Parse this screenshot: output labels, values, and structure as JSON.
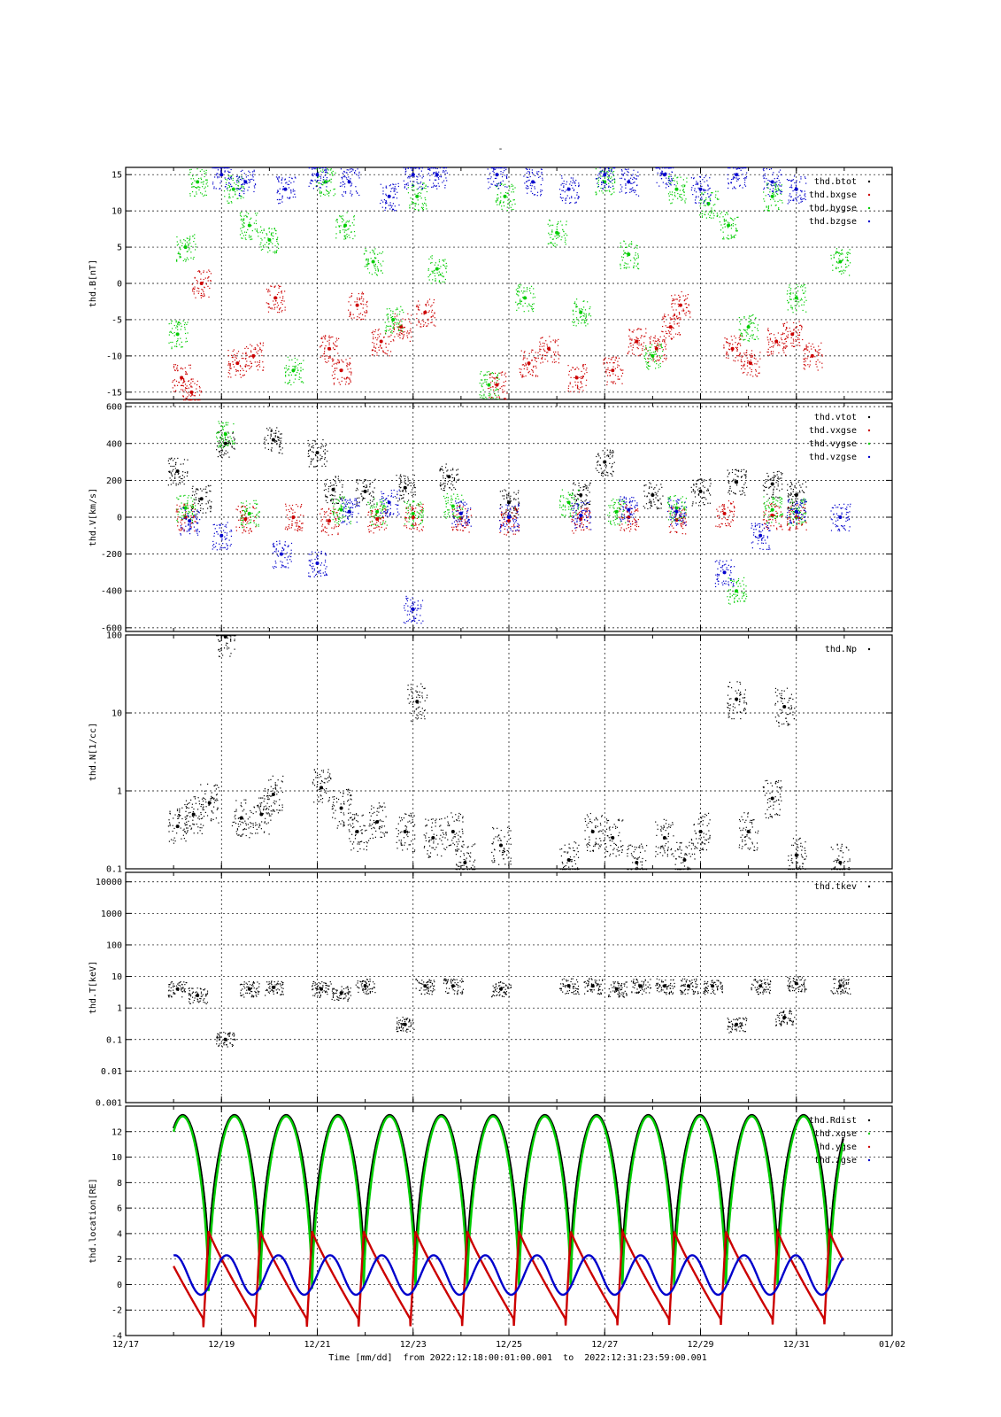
{
  "figure": {
    "title": "-",
    "xlabel": "Time [mm/dd]  from 2022:12:18:00:01:00.001  to  2022:12:31:23:59:00.001",
    "x_ticks": [
      "12/17",
      "12/19",
      "12/21",
      "12/23",
      "12/25",
      "12/27",
      "12/29",
      "12/31",
      "01/02"
    ],
    "x_range": [
      "12/17",
      "01/02"
    ]
  },
  "chart_data": [
    {
      "type": "scatter",
      "ylabel": "thd.B[nT]",
      "ylim": [
        -16,
        16
      ],
      "y_ticks": [
        "15",
        "10",
        "5",
        "0",
        "-5",
        "-10",
        "-15"
      ],
      "legend": "top-right",
      "grid": true,
      "series": [
        {
          "name": "thd.btot",
          "color": "#000000",
          "x": [],
          "y": []
        },
        {
          "name": "thd.bxgse",
          "color": "#cc0000",
          "x": [
            "12/18 04:00",
            "12/18 09:00",
            "12/18 14:00",
            "12/19 08:00",
            "12/19 16:00",
            "12/20 03:00",
            "12/21 06:00",
            "12/21 12:00",
            "12/21 20:00",
            "12/22 08:00",
            "12/22 18:00",
            "12/23 06:00",
            "12/24 18:00",
            "12/25 10:00",
            "12/25 20:00",
            "12/26 10:00",
            "12/27 04:00",
            "12/27 16:00",
            "12/28 02:00",
            "12/28 09:00",
            "12/28 14:00",
            "12/29 16:00",
            "12/30 01:00",
            "12/30 14:00",
            "12/30 22:00",
            "12/31 08:00"
          ],
          "y": [
            -13,
            -15,
            0,
            -11,
            -10,
            -2,
            -9,
            -12,
            -3,
            -8,
            -6,
            -4,
            -14,
            -11,
            -9,
            -13,
            -12,
            -8,
            -9,
            -6,
            -3,
            -9,
            -11,
            -8,
            -7,
            -10
          ]
        },
        {
          "name": "thd.bygse",
          "color": "#00cc00",
          "x": [
            "12/18 02:00",
            "12/18 06:00",
            "12/18 12:00",
            "12/19 06:00",
            "12/19 14:00",
            "12/20 00:00",
            "12/20 12:00",
            "12/21 04:00",
            "12/21 14:00",
            "12/22 04:00",
            "12/22 14:00",
            "12/23 02:00",
            "12/23 12:00",
            "12/24 14:00",
            "12/24 22:00",
            "12/25 08:00",
            "12/26 00:00",
            "12/26 12:00",
            "12/27 00:00",
            "12/27 12:00",
            "12/28 00:00",
            "12/28 12:00",
            "12/29 04:00",
            "12/29 14:00",
            "12/30 00:00",
            "12/30 12:00",
            "12/31 00:00",
            "12/31 22:00"
          ],
          "y": [
            -7,
            5,
            14,
            13,
            8,
            6,
            -12,
            14,
            8,
            3,
            -5,
            12,
            2,
            -14,
            12,
            -2,
            7,
            -4,
            14,
            4,
            -10,
            13,
            11,
            8,
            -6,
            12,
            -2,
            3
          ]
        },
        {
          "name": "thd.bzgse",
          "color": "#0000cc",
          "x": [
            "12/19 00:00",
            "12/19 12:00",
            "12/20 08:00",
            "12/21 00:00",
            "12/21 16:00",
            "12/22 12:00",
            "12/23 00:00",
            "12/23 12:00",
            "12/24 18:00",
            "12/25 12:00",
            "12/26 06:00",
            "12/27 00:00",
            "12/27 12:00",
            "12/28 06:00",
            "12/29 00:00",
            "12/29 18:00",
            "12/30 12:00",
            "12/31 00:00"
          ],
          "y": [
            15,
            14,
            13,
            15,
            14,
            12,
            15,
            15,
            15,
            14,
            13,
            15,
            14,
            15,
            13,
            15,
            14,
            13
          ]
        }
      ]
    },
    {
      "type": "scatter",
      "ylabel": "thd.V[km/s]",
      "ylim": [
        -620,
        620
      ],
      "y_ticks": [
        "600",
        "400",
        "200",
        "0",
        "-200",
        "-400",
        "-600"
      ],
      "legend": "top-right",
      "grid": true,
      "series": [
        {
          "name": "thd.vtot",
          "color": "#000000",
          "x": [
            "12/18 02:00",
            "12/18 14:00",
            "12/19 02:00",
            "12/20 02:00",
            "12/21 00:00",
            "12/21 08:00",
            "12/22 00:00",
            "12/22 20:00",
            "12/23 18:00",
            "12/25 00:00",
            "12/26 12:00",
            "12/27 00:00",
            "12/28 00:00",
            "12/29 00:00",
            "12/29 18:00",
            "12/30 12:00",
            "12/31 00:00"
          ],
          "y": [
            250,
            100,
            400,
            420,
            350,
            150,
            140,
            160,
            220,
            80,
            120,
            300,
            120,
            140,
            190,
            180,
            120
          ]
        },
        {
          "name": "thd.vxgse",
          "color": "#cc0000",
          "x": [
            "12/18 06:00",
            "12/19 12:00",
            "12/20 12:00",
            "12/21 06:00",
            "12/22 06:00",
            "12/23 00:00",
            "12/24 00:00",
            "12/25 00:00",
            "12/26 12:00",
            "12/27 12:00",
            "12/28 12:00",
            "12/29 12:00",
            "12/30 12:00",
            "12/31 00:00"
          ],
          "y": [
            0,
            -10,
            0,
            -20,
            -10,
            0,
            -5,
            -20,
            -10,
            0,
            -15,
            20,
            10,
            0
          ]
        },
        {
          "name": "thd.vygse",
          "color": "#00cc00",
          "x": [
            "12/18 06:00",
            "12/19 02:00",
            "12/19 14:00",
            "12/21 12:00",
            "12/22 06:00",
            "12/23 00:00",
            "12/23 20:00",
            "12/26 06:00",
            "12/27 06:00",
            "12/28 12:00",
            "12/29 18:00",
            "12/30 12:00",
            "12/31 00:00"
          ],
          "y": [
            50,
            450,
            20,
            40,
            30,
            20,
            60,
            80,
            30,
            50,
            -400,
            40,
            30
          ]
        },
        {
          "name": "thd.vzgse",
          "color": "#0000cc",
          "x": [
            "12/18 08:00",
            "12/19 00:00",
            "12/20 06:00",
            "12/21 00:00",
            "12/21 16:00",
            "12/22 12:00",
            "12/23 00:00",
            "12/24 00:00",
            "12/25 00:00",
            "12/26 12:00",
            "12/27 12:00",
            "12/28 12:00",
            "12/29 12:00",
            "12/30 06:00",
            "12/31 00:00",
            "12/31 22:00"
          ],
          "y": [
            -20,
            -100,
            -200,
            -250,
            30,
            80,
            -500,
            20,
            0,
            10,
            40,
            30,
            -300,
            -100,
            30,
            0
          ]
        }
      ]
    },
    {
      "type": "scatter",
      "ylabel": "thd.N[1/cc]",
      "ylim": [
        0.1,
        100
      ],
      "yscale": "log",
      "y_ticks": [
        "100",
        "10",
        "1",
        "0.1"
      ],
      "legend": "top-right",
      "grid": true,
      "series": [
        {
          "name": "thd.Np",
          "color": "#000000",
          "x": [
            "12/18 02:00",
            "12/18 10:00",
            "12/18 18:00",
            "12/19 02:00",
            "12/19 10:00",
            "12/19 20:00",
            "12/20 02:00",
            "12/21 02:00",
            "12/21 12:00",
            "12/21 20:00",
            "12/22 06:00",
            "12/22 20:00",
            "12/23 02:00",
            "12/23 10:00",
            "12/23 20:00",
            "12/24 02:00",
            "12/24 20:00",
            "12/26 06:00",
            "12/26 18:00",
            "12/27 04:00",
            "12/27 16:00",
            "12/28 06:00",
            "12/28 16:00",
            "12/29 00:00",
            "12/29 18:00",
            "12/30 00:00",
            "12/30 12:00",
            "12/30 18:00",
            "12/31 00:00",
            "12/31 22:00"
          ],
          "y": [
            0.35,
            0.5,
            0.7,
            95,
            0.45,
            0.5,
            0.9,
            1.1,
            0.6,
            0.3,
            0.4,
            0.3,
            14,
            0.25,
            0.3,
            0.12,
            0.2,
            0.13,
            0.3,
            0.25,
            0.12,
            0.25,
            0.13,
            0.3,
            15,
            0.3,
            0.8,
            12,
            0.15,
            0.12
          ]
        }
      ]
    },
    {
      "type": "scatter",
      "ylabel": "thd.T[keV]",
      "ylim": [
        0.001,
        20000
      ],
      "yscale": "log",
      "y_ticks": [
        "10000",
        "1000",
        "100",
        "10",
        "1",
        "0.1",
        "0.01",
        "0.001"
      ],
      "legend": "top-right",
      "grid": true,
      "series": [
        {
          "name": "thd.tkev",
          "color": "#000000",
          "x": [
            "12/18 02:00",
            "12/18 12:00",
            "12/19 02:00",
            "12/19 14:00",
            "12/20 02:00",
            "12/21 02:00",
            "12/21 12:00",
            "12/22 00:00",
            "12/22 20:00",
            "12/23 06:00",
            "12/23 20:00",
            "12/24 20:00",
            "12/26 06:00",
            "12/26 18:00",
            "12/27 06:00",
            "12/27 18:00",
            "12/28 06:00",
            "12/28 18:00",
            "12/29 06:00",
            "12/29 18:00",
            "12/30 06:00",
            "12/30 18:00",
            "12/31 00:00",
            "12/31 22:00"
          ],
          "y": [
            4,
            2.5,
            0.1,
            4,
            4.5,
            4,
            3,
            5,
            0.3,
            5,
            5,
            4,
            5,
            5,
            4,
            5,
            5,
            5,
            5,
            0.3,
            5,
            0.5,
            6,
            5
          ]
        }
      ]
    },
    {
      "type": "line",
      "ylabel": "thd.location[RE]",
      "ylim": [
        -4,
        14
      ],
      "y_ticks": [
        "12",
        "10",
        "8",
        "6",
        "4",
        "2",
        "0",
        "-2",
        "-4"
      ],
      "legend": "top-right",
      "grid": true,
      "orbit_period_days": 1.08,
      "series": [
        {
          "name": "thd.Rdist",
          "color": "#000000",
          "peak": 13.3,
          "min": 1.0
        },
        {
          "name": "thd.xgse",
          "color": "#00cc00",
          "peak": 13.2,
          "min": -1.0
        },
        {
          "name": "thd.ygse",
          "color": "#cc0000",
          "peak": 4.2,
          "min": -3.4
        },
        {
          "name": "thd.zgse",
          "color": "#0000cc",
          "peak": 2.3,
          "min": -0.8
        }
      ]
    }
  ]
}
